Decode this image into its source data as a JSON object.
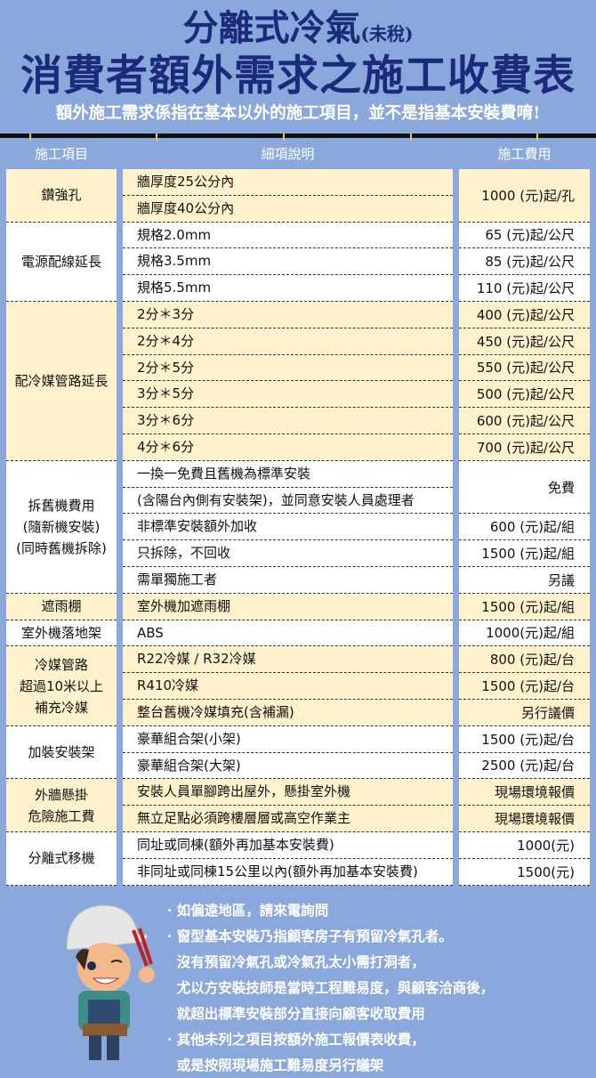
{
  "header": {
    "title_main": "分離式冷氣",
    "title_tax": "(未稅)",
    "title_line2": "消費者額外需求之施工收費表",
    "subtitle": "額外施工需求係指在基本以外的施工項目，並不是指基本安裝費唷!"
  },
  "columns": [
    "施工項目",
    "細項說明",
    "施工費用"
  ],
  "colors": {
    "background": "#8ba8dc",
    "title": "#1b2a7a",
    "cream": "#fff2cc",
    "white": "#ffffff"
  },
  "groups": [
    {
      "item": "鑽強孔",
      "bg": "cream",
      "details": [
        "牆厚度25公分內",
        "牆厚度40公分內"
      ],
      "prices": [
        {
          "text": "1000 (元)起/孔",
          "span": 2
        }
      ]
    },
    {
      "item": "電源配線延長",
      "bg": "white",
      "details": [
        "規格2.0mm",
        "規格3.5mm",
        "規格5.5mm"
      ],
      "prices": [
        {
          "text": "65 (元)起/公尺",
          "span": 1
        },
        {
          "text": "85 (元)起/公尺",
          "span": 1
        },
        {
          "text": "110 (元)起/公尺",
          "span": 1
        }
      ]
    },
    {
      "item": "配冷媒管路延長",
      "bg": "cream",
      "details": [
        "2分＊3分",
        "2分＊4分",
        "2分＊5分",
        "3分＊5分",
        "3分＊6分",
        "4分＊6分"
      ],
      "prices": [
        {
          "text": "400 (元)起/公尺",
          "span": 1
        },
        {
          "text": "450 (元)起/公尺",
          "span": 1
        },
        {
          "text": "550 (元)起/公尺",
          "span": 1
        },
        {
          "text": "500 (元)起/公尺",
          "span": 1
        },
        {
          "text": "600 (元)起/公尺",
          "span": 1
        },
        {
          "text": "700 (元)起/公尺",
          "span": 1
        }
      ]
    },
    {
      "item": "拆舊機費用\n(隨新機安裝)\n(同時舊機拆除)",
      "bg": "white",
      "details": [
        "一換一免費且舊機為標準安裝",
        "(含陽台內側有安裝架)，並同意安裝人員處理者",
        "非標準安裝額外加收",
        "只拆除，不回收",
        "需單獨施工者"
      ],
      "prices": [
        {
          "text": "免費",
          "span": 2
        },
        {
          "text": "600 (元)起/組",
          "span": 1
        },
        {
          "text": "1500 (元)起/組",
          "span": 1
        },
        {
          "text": "另議",
          "span": 1
        }
      ]
    },
    {
      "item": "遮雨棚",
      "bg": "cream",
      "details": [
        "室外機加遮雨棚"
      ],
      "prices": [
        {
          "text": "1500 (元)起/組",
          "span": 1
        }
      ]
    },
    {
      "item": "室外機落地架",
      "bg": "white",
      "details": [
        "ABS"
      ],
      "prices": [
        {
          "text": "1000(元)起/組",
          "span": 1
        }
      ]
    },
    {
      "item": "冷媒管路\n超過10米以上\n補充冷媒",
      "bg": "cream",
      "details": [
        "R22冷媒 / R32冷媒",
        "R410冷媒",
        "整台舊機冷媒填充(含補漏)"
      ],
      "prices": [
        {
          "text": "800 (元)起/台",
          "span": 1
        },
        {
          "text": "1500 (元)起/台",
          "span": 1
        },
        {
          "text": "另行議價",
          "span": 1
        }
      ]
    },
    {
      "item": "加裝安裝架",
      "bg": "white",
      "details": [
        "豪華組合架(小架)",
        "豪華組合架(大架)"
      ],
      "prices": [
        {
          "text": "1500 (元)起/台",
          "span": 1
        },
        {
          "text": "2500 (元)起/台",
          "span": 1
        }
      ]
    },
    {
      "item": "外牆懸掛\n危險施工費",
      "bg": "cream",
      "details": [
        "安裝人員單腳跨出屋外，懸掛室外機",
        "無立足點必須跨樓層層或高空作業主"
      ],
      "prices": [
        {
          "text": "現場環境報價",
          "span": 1
        },
        {
          "text": "現場環境報價",
          "span": 1
        }
      ]
    },
    {
      "item": "分離式移機",
      "bg": "white",
      "details": [
        "同址或同棟(額外再加基本安裝費)",
        "非同址或同棟15公里以內(額外再加基本安裝費)"
      ],
      "prices": [
        {
          "text": "1000(元)",
          "span": 1
        },
        {
          "text": "1500(元)",
          "span": 1
        }
      ]
    }
  ],
  "notes": [
    "· 如偏遠地區，請來電詢問",
    "· 窗型基本安裝乃指顧客房子有預留冷氣孔者。",
    "  沒有預留冷氣孔或冷氣孔太小需打洞者，",
    "  尤以方安裝技師是當時工程難易度，與顧客洽商後，",
    "  就超出標準安裝部分直接向顧客收取費用",
    "· 其他未列之項目按額外施工報價表收費，",
    "  或是按照現場施工難易度另行議架"
  ]
}
